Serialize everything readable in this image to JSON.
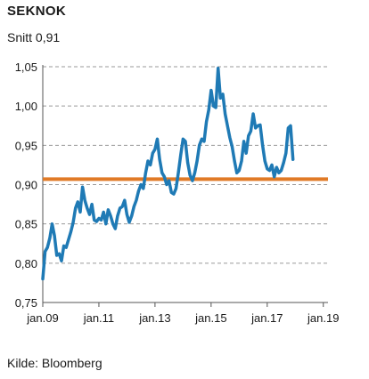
{
  "header": {
    "title": "SEKNOK",
    "subtitle": "Snitt 0,91"
  },
  "footer": {
    "source": "Kilde: Bloomberg"
  },
  "colors": {
    "series": "#1f7ab5",
    "average": "#e07a26",
    "grid": "#9a9a9a",
    "axis": "#555555"
  },
  "chart_data": {
    "type": "line",
    "title": "SEKNOK",
    "subtitle": "Snitt 0,91",
    "xlabel": "",
    "ylabel": "",
    "ylim": [
      0.75,
      1.05
    ],
    "xlim": [
      "2009-01",
      "2019-03"
    ],
    "grid": "horizontal dashed",
    "y_ticks": [
      0.75,
      0.8,
      0.85,
      0.9,
      0.95,
      1.0,
      1.05
    ],
    "y_tick_labels": [
      "0,75",
      "0,80",
      "0,85",
      "0,90",
      "0,95",
      "1,00",
      "1,05"
    ],
    "x_ticks": [
      "2009-01",
      "2011-01",
      "2013-01",
      "2015-01",
      "2017-01",
      "2019-01"
    ],
    "x_tick_labels": [
      "jan.09",
      "jan.11",
      "jan.13",
      "jan.15",
      "jan.17",
      "jan.19"
    ],
    "reference_lines": [
      {
        "label": "Snitt",
        "value": 0.907
      }
    ],
    "series": [
      {
        "values": [
          [
            "2009-01",
            0.78
          ],
          [
            "2009-02",
            0.815
          ],
          [
            "2009-03",
            0.82
          ],
          [
            "2009-04",
            0.832
          ],
          [
            "2009-05",
            0.85
          ],
          [
            "2009-06",
            0.835
          ],
          [
            "2009-07",
            0.81
          ],
          [
            "2009-08",
            0.812
          ],
          [
            "2009-09",
            0.803
          ],
          [
            "2009-10",
            0.822
          ],
          [
            "2009-11",
            0.82
          ],
          [
            "2009-12",
            0.83
          ],
          [
            "2010-01",
            0.84
          ],
          [
            "2010-02",
            0.852
          ],
          [
            "2010-03",
            0.87
          ],
          [
            "2010-04",
            0.878
          ],
          [
            "2010-05",
            0.865
          ],
          [
            "2010-06",
            0.897
          ],
          [
            "2010-07",
            0.88
          ],
          [
            "2010-08",
            0.87
          ],
          [
            "2010-09",
            0.862
          ],
          [
            "2010-10",
            0.875
          ],
          [
            "2010-11",
            0.855
          ],
          [
            "2010-12",
            0.853
          ],
          [
            "2011-01",
            0.857
          ],
          [
            "2011-02",
            0.855
          ],
          [
            "2011-03",
            0.865
          ],
          [
            "2011-04",
            0.85
          ],
          [
            "2011-05",
            0.868
          ],
          [
            "2011-06",
            0.86
          ],
          [
            "2011-07",
            0.85
          ],
          [
            "2011-08",
            0.844
          ],
          [
            "2011-09",
            0.86
          ],
          [
            "2011-10",
            0.87
          ],
          [
            "2011-11",
            0.872
          ],
          [
            "2011-12",
            0.88
          ],
          [
            "2012-01",
            0.862
          ],
          [
            "2012-02",
            0.852
          ],
          [
            "2012-03",
            0.86
          ],
          [
            "2012-04",
            0.872
          ],
          [
            "2012-05",
            0.88
          ],
          [
            "2012-06",
            0.892
          ],
          [
            "2012-07",
            0.9
          ],
          [
            "2012-08",
            0.895
          ],
          [
            "2012-09",
            0.915
          ],
          [
            "2012-10",
            0.93
          ],
          [
            "2012-11",
            0.925
          ],
          [
            "2012-12",
            0.94
          ],
          [
            "2013-01",
            0.945
          ],
          [
            "2013-02",
            0.958
          ],
          [
            "2013-03",
            0.932
          ],
          [
            "2013-04",
            0.915
          ],
          [
            "2013-05",
            0.91
          ],
          [
            "2013-06",
            0.9
          ],
          [
            "2013-07",
            0.905
          ],
          [
            "2013-08",
            0.89
          ],
          [
            "2013-09",
            0.888
          ],
          [
            "2013-10",
            0.895
          ],
          [
            "2013-11",
            0.915
          ],
          [
            "2013-12",
            0.938
          ],
          [
            "2014-01",
            0.958
          ],
          [
            "2014-02",
            0.955
          ],
          [
            "2014-03",
            0.928
          ],
          [
            "2014-04",
            0.912
          ],
          [
            "2014-05",
            0.905
          ],
          [
            "2014-06",
            0.915
          ],
          [
            "2014-07",
            0.93
          ],
          [
            "2014-08",
            0.95
          ],
          [
            "2014-09",
            0.958
          ],
          [
            "2014-10",
            0.955
          ],
          [
            "2014-11",
            0.98
          ],
          [
            "2014-12",
            0.995
          ],
          [
            "2015-01",
            1.02
          ],
          [
            "2015-02",
            1.0
          ],
          [
            "2015-03",
            0.998
          ],
          [
            "2015-04",
            1.048
          ],
          [
            "2015-05",
            1.01
          ],
          [
            "2015-06",
            1.015
          ],
          [
            "2015-07",
            0.99
          ],
          [
            "2015-08",
            0.975
          ],
          [
            "2015-09",
            0.96
          ],
          [
            "2015-10",
            0.948
          ],
          [
            "2015-11",
            0.93
          ],
          [
            "2015-12",
            0.915
          ],
          [
            "2016-01",
            0.918
          ],
          [
            "2016-02",
            0.93
          ],
          [
            "2016-03",
            0.955
          ],
          [
            "2016-04",
            0.94
          ],
          [
            "2016-05",
            0.962
          ],
          [
            "2016-06",
            0.968
          ],
          [
            "2016-07",
            0.99
          ],
          [
            "2016-08",
            0.972
          ],
          [
            "2016-09",
            0.975
          ],
          [
            "2016-10",
            0.976
          ],
          [
            "2016-11",
            0.95
          ],
          [
            "2016-12",
            0.93
          ],
          [
            "2017-01",
            0.92
          ],
          [
            "2017-02",
            0.918
          ],
          [
            "2017-03",
            0.925
          ],
          [
            "2017-04",
            0.91
          ],
          [
            "2017-05",
            0.922
          ],
          [
            "2017-06",
            0.915
          ],
          [
            "2017-07",
            0.918
          ],
          [
            "2017-08",
            0.928
          ],
          [
            "2017-09",
            0.94
          ],
          [
            "2017-10",
            0.972
          ],
          [
            "2017-11",
            0.975
          ],
          [
            "2017-12",
            0.932
          ]
        ]
      }
    ]
  }
}
